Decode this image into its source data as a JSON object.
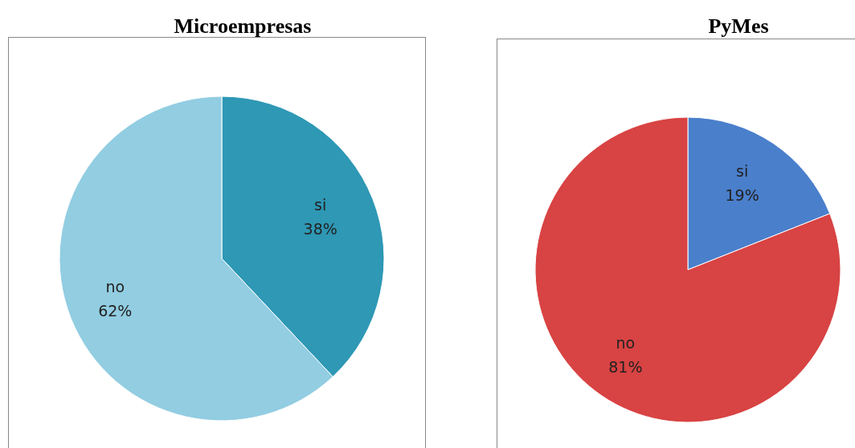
{
  "chart_data": [
    {
      "type": "pie",
      "title": "Microempresas",
      "categories": [
        "si",
        "no"
      ],
      "values": [
        38,
        62
      ],
      "colors": [
        "#2e98b5",
        "#92cde2"
      ],
      "value_labels": [
        "38%",
        "62%"
      ]
    },
    {
      "type": "pie",
      "title": "PyMes",
      "categories": [
        "si",
        "no"
      ],
      "values": [
        19,
        81
      ],
      "colors": [
        "#4a7fcc",
        "#d84343"
      ],
      "value_labels": [
        "19%",
        "81%"
      ]
    }
  ]
}
